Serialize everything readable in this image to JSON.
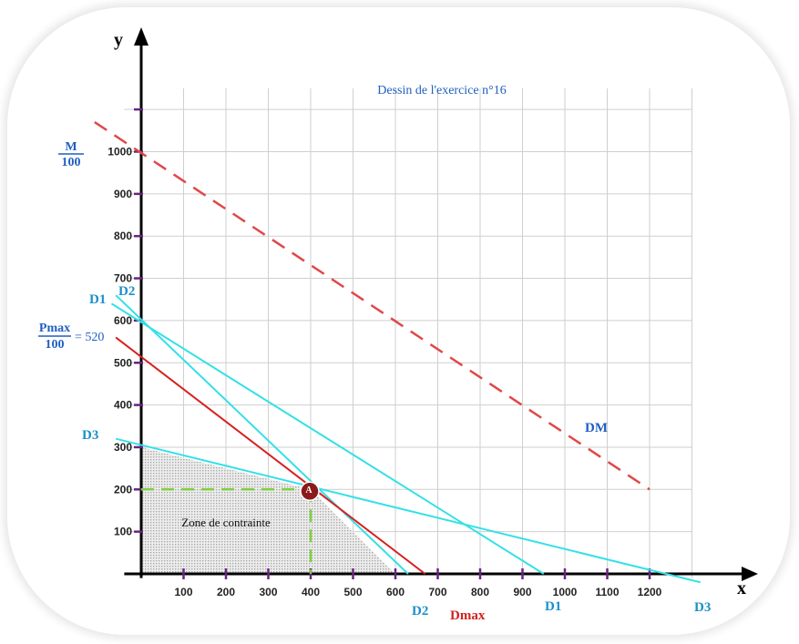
{
  "chart_data": {
    "type": "line",
    "title": "Dessin de l'exercice n°16",
    "xlabel": "x",
    "ylabel": "y",
    "xlim": [
      -40,
      1300
    ],
    "ylim": [
      -10,
      1150
    ],
    "grid": true,
    "x_ticks": [
      100,
      200,
      300,
      400,
      500,
      600,
      700,
      800,
      900,
      1000,
      1100,
      1200
    ],
    "y_ticks": [
      100,
      200,
      300,
      400,
      500,
      600,
      700,
      800,
      900,
      1000
    ],
    "x_tick_labels": [
      "100",
      "200",
      "300",
      "400",
      "500",
      "600",
      "700",
      "800",
      "900",
      "1000",
      "1100",
      "1200"
    ],
    "y_tick_labels": [
      "100",
      "200",
      "300",
      "400",
      "500",
      "600",
      "700",
      "800",
      "900",
      "1000"
    ],
    "colors": {
      "cyan": "#33e0e8",
      "red": "#d62020",
      "dashed_red": "#e04848",
      "label_blue": "#1f5fc0",
      "label_cyan": "#1a90c8",
      "point": "#8b1a1a",
      "green": "#7ed040",
      "grid": "#cfcfcf",
      "axis": "#000000",
      "tick_mark": "#6a2480"
    },
    "series": [
      {
        "name": "D1",
        "x": [
          -70,
          950
        ],
        "y": [
          640,
          0
        ]
      },
      {
        "name": "D2",
        "x": [
          -60,
          630
        ],
        "y": [
          660,
          0
        ]
      },
      {
        "name": "D3",
        "x": [
          -60,
          1320
        ],
        "y": [
          320,
          -20
        ]
      },
      {
        "name": "Dmax",
        "x": [
          -60,
          670
        ],
        "y": [
          560,
          0
        ]
      },
      {
        "name": "DM",
        "x": [
          -110,
          1200
        ],
        "y": [
          1070,
          200
        ]
      }
    ],
    "point": {
      "label": "A",
      "x": 400,
      "y": 200
    },
    "region": {
      "name": "Zone de contrainte",
      "polygon": [
        [
          0,
          0
        ],
        [
          0,
          300
        ],
        [
          400,
          200
        ],
        [
          600,
          0
        ]
      ]
    },
    "annotations": {
      "m_num": "M",
      "m_den": "100",
      "pmax_num": "Pmax",
      "pmax_den": "100",
      "pmax_eq": "= 520",
      "d1_left": "D1",
      "d2_left": "D2",
      "d3_left": "D3",
      "d2_bottom": "D2",
      "dmax_bottom": "Dmax",
      "d1_bottom": "D1",
      "d3_bottom": "D3",
      "dm_label": "DM"
    }
  }
}
